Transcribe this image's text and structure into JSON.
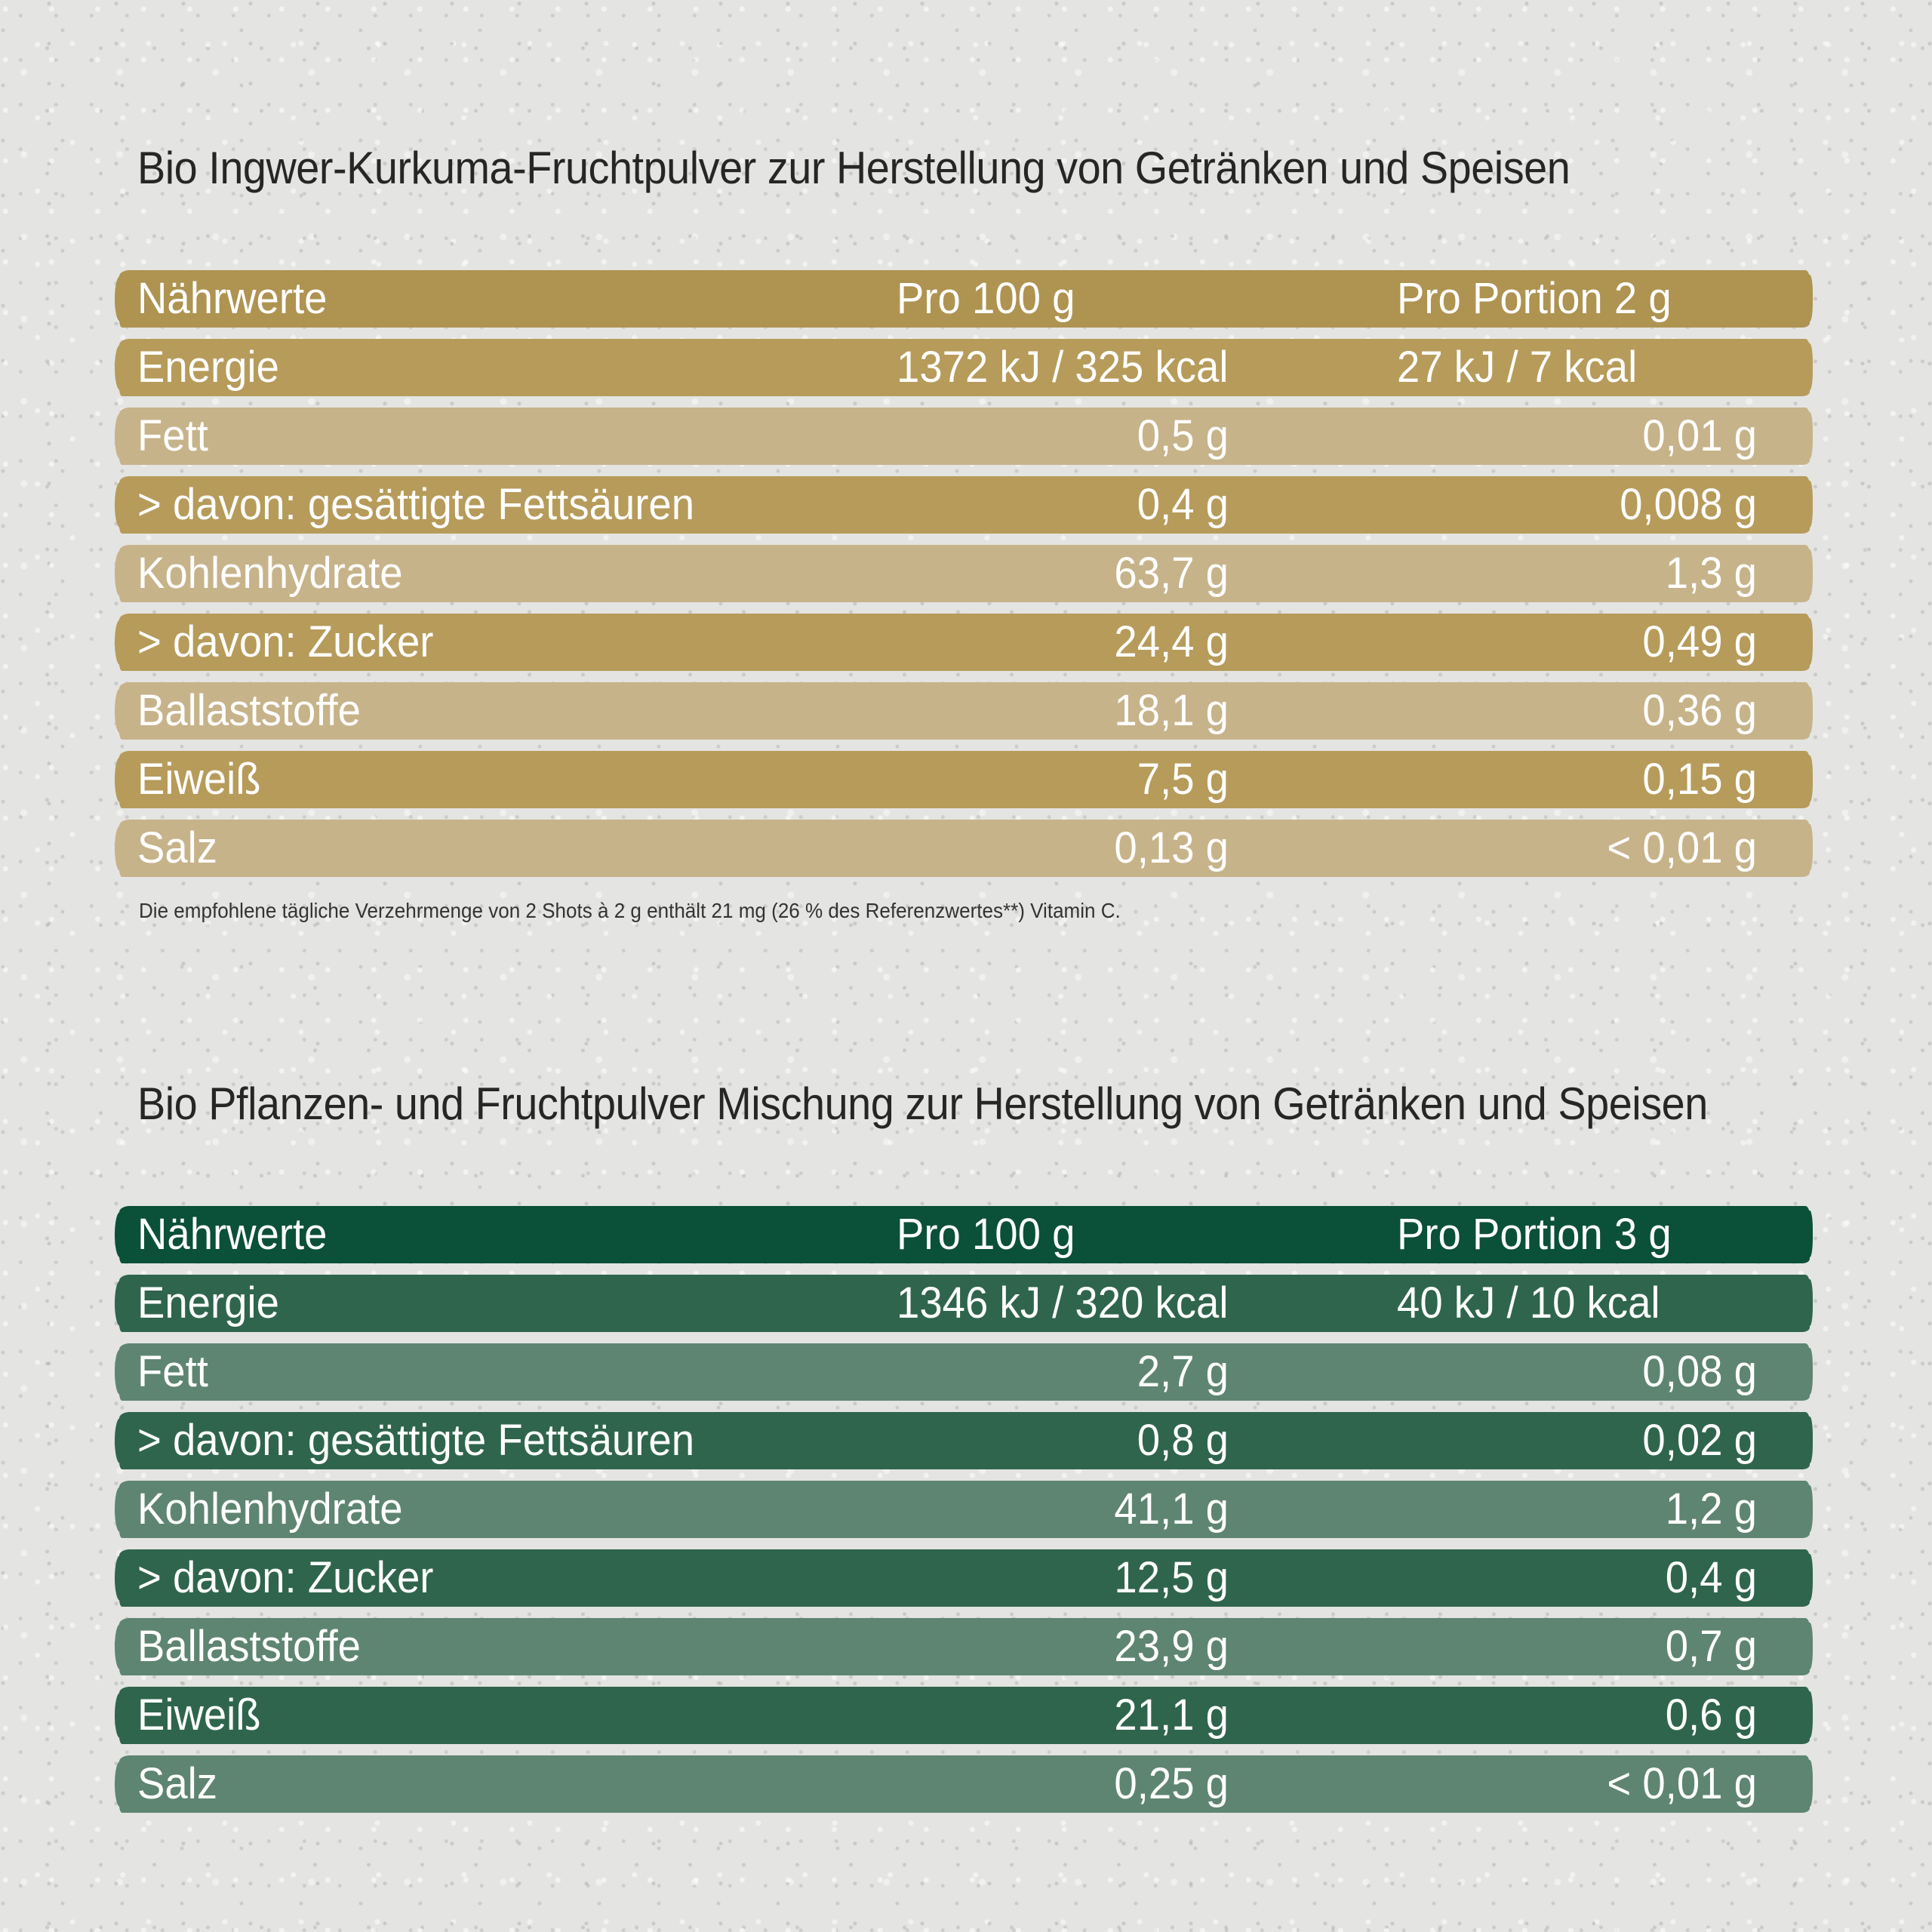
{
  "colors": {
    "gold_header": "#ae9351",
    "gold_dark": "#b69b5a",
    "gold_light": "#c7b38a",
    "green_header": "#0b5038",
    "green_dark": "#2f654d",
    "green_light": "#5e8571",
    "background": "#e4e4e2"
  },
  "tables": [
    {
      "title": "Bio Ingwer-Kurkuma-Fruchtpulver zur Herstellung von Getränken und Speisen",
      "header": [
        "Nährwerte",
        "Pro 100 g",
        "Pro Portion 2 g"
      ],
      "rows": [
        [
          "Energie",
          "1372 kJ / 325 kcal",
          "27 kJ / 7 kcal"
        ],
        [
          "Fett",
          "0,5 g",
          "0,01 g"
        ],
        [
          "> davon: gesättigte Fettsäuren",
          "0,4 g",
          "0,008 g"
        ],
        [
          "Kohlenhydrate",
          "63,7 g",
          "1,3 g"
        ],
        [
          "> davon: Zucker",
          "24,4 g",
          "0,49 g"
        ],
        [
          "Ballaststoffe",
          "18,1 g",
          "0,36 g"
        ],
        [
          "Eiweiß",
          "7,5 g",
          "0,15 g"
        ],
        [
          "Salz",
          "0,13 g",
          "< 0,01 g"
        ]
      ],
      "footnote": "Die empfohlene tägliche Verzehrmenge von 2 Shots à 2 g enthält 21 mg (26 % des Referenzwertes**) Vitamin C."
    },
    {
      "title": "Bio Pflanzen- und Fruchtpulver Mischung zur Herstellung von Getränken und Speisen",
      "header": [
        "Nährwerte",
        "Pro 100 g",
        "Pro Portion 3 g"
      ],
      "rows": [
        [
          "Energie",
          "1346 kJ / 320 kcal",
          "40 kJ / 10 kcal"
        ],
        [
          "Fett",
          "2,7 g",
          "0,08 g"
        ],
        [
          "> davon: gesättigte Fettsäuren",
          "0,8 g",
          "0,02 g"
        ],
        [
          "Kohlenhydrate",
          "41,1 g",
          "1,2 g"
        ],
        [
          "> davon: Zucker",
          "12,5 g",
          "0,4 g"
        ],
        [
          "Ballaststoffe",
          "23,9 g",
          "0,7 g"
        ],
        [
          "Eiweiß",
          "21,1 g",
          "0,6 g"
        ],
        [
          "Salz",
          "0,25 g",
          "< 0,01 g"
        ]
      ]
    }
  ]
}
